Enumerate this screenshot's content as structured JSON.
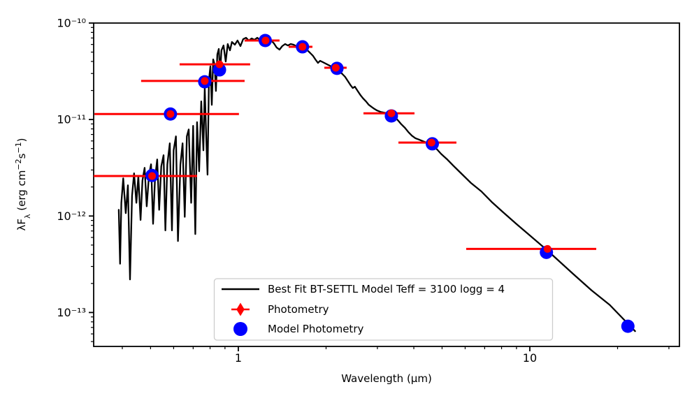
{
  "figure": {
    "background": "#ffffff"
  },
  "colors": {
    "spectrum": "#000000",
    "photometry": "#ff0000",
    "model_photometry": "#0000ff",
    "legend_border": "#cccccc"
  },
  "axes": {
    "xlabel": "Wavelength (μm)",
    "ylabel_plain": "λFλ (erg cm−2s−1)",
    "ylabel_parts": [
      {
        "text": "λF",
        "style": "normal"
      },
      {
        "text": "λ",
        "style": "sub"
      },
      {
        "text": " (erg cm",
        "style": "normal"
      },
      {
        "text": "−2",
        "style": "sup"
      },
      {
        "text": "s",
        "style": "normal"
      },
      {
        "text": "−1",
        "style": "sup"
      },
      {
        "text": ")",
        "style": "normal"
      }
    ],
    "x_ticks": [
      {
        "value": 1,
        "label": "1"
      },
      {
        "value": 10,
        "label": "10"
      }
    ],
    "y_ticks": [
      {
        "value": 1e-10,
        "label": "10⁻¹⁰"
      },
      {
        "value": 1e-11,
        "label": "10⁻¹¹"
      },
      {
        "value": 1e-12,
        "label": "10⁻¹²"
      },
      {
        "value": 1e-13,
        "label": "10⁻¹³"
      }
    ]
  },
  "legend": {
    "items": [
      {
        "label": "Best Fit BT-SETTL Model Teff = 3100 logg = 4",
        "marker": "line",
        "color": "#000000"
      },
      {
        "label": "Photometry",
        "marker": "diamond",
        "color": "#ff0000"
      },
      {
        "label": "Model Photometry",
        "marker": "circle",
        "color": "#0000ff"
      }
    ]
  },
  "chart_data": {
    "type": "line",
    "title": "",
    "xlabel": "Wavelength (μm)",
    "ylabel": "λFλ (erg cm−2s−1)",
    "x_scale": "log",
    "y_scale": "log",
    "xlim": [
      0.319,
      32.6
    ],
    "ylim": [
      4.45e-14,
      1e-10
    ],
    "grid": false,
    "legend_position": "lower center",
    "series": [
      {
        "name": "Best Fit BT-SETTL Model Teff = 3100 logg = 4",
        "type": "line",
        "color": "#000000",
        "points": [
          [
            0.389,
            1.16e-12
          ],
          [
            0.393,
            3.2e-13
          ],
          [
            0.397,
            1.37e-12
          ],
          [
            0.403,
            2.46e-12
          ],
          [
            0.411,
            1.07e-12
          ],
          [
            0.418,
            2.08e-12
          ],
          [
            0.425,
            2.2e-13
          ],
          [
            0.432,
            1.62e-12
          ],
          [
            0.439,
            2.77e-12
          ],
          [
            0.447,
            1.37e-12
          ],
          [
            0.454,
            2.59e-12
          ],
          [
            0.462,
            9.1e-13
          ],
          [
            0.469,
            2.34e-12
          ],
          [
            0.477,
            3.16e-12
          ],
          [
            0.485,
            1.26e-12
          ],
          [
            0.494,
            2.68e-12
          ],
          [
            0.502,
            3.44e-12
          ],
          [
            0.51,
            8.3e-13
          ],
          [
            0.518,
            2.46e-12
          ],
          [
            0.527,
            3.86e-12
          ],
          [
            0.535,
            1.16e-12
          ],
          [
            0.544,
            3.27e-12
          ],
          [
            0.554,
            4.27e-12
          ],
          [
            0.562,
            7.1e-13
          ],
          [
            0.571,
            3.44e-12
          ],
          [
            0.582,
            5.67e-12
          ],
          [
            0.592,
            7.1e-13
          ],
          [
            0.6,
            4.8e-12
          ],
          [
            0.611,
            6.7e-12
          ],
          [
            0.621,
            5.5e-13
          ],
          [
            0.633,
            3.44e-12
          ],
          [
            0.644,
            5.67e-12
          ],
          [
            0.655,
            9.8e-13
          ],
          [
            0.666,
            6.7e-12
          ],
          [
            0.676,
            7.9e-12
          ],
          [
            0.689,
            1.37e-12
          ],
          [
            0.7,
            8.6e-12
          ],
          [
            0.712,
            6.5e-13
          ],
          [
            0.722,
            9.4e-12
          ],
          [
            0.734,
            2.91e-12
          ],
          [
            0.746,
            1.54e-11
          ],
          [
            0.759,
            4.8e-12
          ],
          [
            0.767,
            2.15e-11
          ],
          [
            0.776,
            6.7e-12
          ],
          [
            0.784,
            2.68e-12
          ],
          [
            0.793,
            2.55e-11
          ],
          [
            0.802,
            3.56e-11
          ],
          [
            0.811,
            1.42e-11
          ],
          [
            0.82,
            4.2e-11
          ],
          [
            0.829,
            3.73e-11
          ],
          [
            0.838,
            1.98e-11
          ],
          [
            0.847,
            4.72e-11
          ],
          [
            0.857,
            5.4e-11
          ],
          [
            0.866,
            3.01e-11
          ],
          [
            0.875,
            5.21e-11
          ],
          [
            0.89,
            5.86e-11
          ],
          [
            0.905,
            3.99e-11
          ],
          [
            0.92,
            6.06e-11
          ],
          [
            0.936,
            5.21e-11
          ],
          [
            0.951,
            6.37e-11
          ],
          [
            0.973,
            5.96e-11
          ],
          [
            0.994,
            6.59e-11
          ],
          [
            1.017,
            5.77e-11
          ],
          [
            1.039,
            6.81e-11
          ],
          [
            1.063,
            7.04e-11
          ],
          [
            1.086,
            6.59e-11
          ],
          [
            1.111,
            6.93e-11
          ],
          [
            1.136,
            6.7e-11
          ],
          [
            1.161,
            7.04e-11
          ],
          [
            1.187,
            6.7e-11
          ],
          [
            1.213,
            6.93e-11
          ],
          [
            1.24,
            6.7e-11
          ],
          [
            1.268,
            6.37e-11
          ],
          [
            1.296,
            6.59e-11
          ],
          [
            1.325,
            6.16e-11
          ],
          [
            1.354,
            5.57e-11
          ],
          [
            1.385,
            5.31e-11
          ],
          [
            1.415,
            5.77e-11
          ],
          [
            1.447,
            6.06e-11
          ],
          [
            1.479,
            5.86e-11
          ],
          [
            1.512,
            6.06e-11
          ],
          [
            1.547,
            5.96e-11
          ],
          [
            1.581,
            5.77e-11
          ],
          [
            1.617,
            5.77e-11
          ],
          [
            1.653,
            5.57e-11
          ],
          [
            1.69,
            5.4e-11
          ],
          [
            1.727,
            5.21e-11
          ],
          [
            1.766,
            4.88e-11
          ],
          [
            1.805,
            4.56e-11
          ],
          [
            1.845,
            4.13e-11
          ],
          [
            1.876,
            3.86e-11
          ],
          [
            1.907,
            4.06e-11
          ],
          [
            1.95,
            3.93e-11
          ],
          [
            1.993,
            3.8e-11
          ],
          [
            2.038,
            3.67e-11
          ],
          [
            2.083,
            3.56e-11
          ],
          [
            2.129,
            3.44e-11
          ],
          [
            2.177,
            3.33e-11
          ],
          [
            2.225,
            3.16e-11
          ],
          [
            2.275,
            2.96e-11
          ],
          [
            2.325,
            2.77e-11
          ],
          [
            2.377,
            2.5e-11
          ],
          [
            2.43,
            2.26e-11
          ],
          [
            2.47,
            2.12e-11
          ],
          [
            2.511,
            2.19e-11
          ],
          [
            2.567,
            1.98e-11
          ],
          [
            2.624,
            1.79e-11
          ],
          [
            2.682,
            1.65e-11
          ],
          [
            2.742,
            1.54e-11
          ],
          [
            2.803,
            1.42e-11
          ],
          [
            2.865,
            1.35e-11
          ],
          [
            2.929,
            1.29e-11
          ],
          [
            2.994,
            1.24e-11
          ],
          [
            3.077,
            1.2e-11
          ],
          [
            3.163,
            1.18e-11
          ],
          [
            3.251,
            1.16e-11
          ],
          [
            3.341,
            1.14e-11
          ],
          [
            3.434,
            1.07e-11
          ],
          [
            3.53,
            9.8e-12
          ],
          [
            3.628,
            8.9e-12
          ],
          [
            3.729,
            8.2e-12
          ],
          [
            3.833,
            7.4e-12
          ],
          [
            3.94,
            6.8e-12
          ],
          [
            4.05,
            6.4e-12
          ],
          [
            4.163,
            6.2e-12
          ],
          [
            4.279,
            6e-12
          ],
          [
            4.398,
            5.8e-12
          ],
          [
            4.521,
            5.7e-12
          ],
          [
            4.647,
            5.4e-12
          ],
          [
            4.803,
            4.9e-12
          ],
          [
            4.964,
            4.4e-12
          ],
          [
            5.187,
            3.9e-12
          ],
          [
            5.48,
            3.3e-12
          ],
          [
            5.79,
            2.8e-12
          ],
          [
            6.283,
            2.2e-12
          ],
          [
            6.818,
            1.8e-12
          ],
          [
            7.399,
            1.4e-12
          ],
          [
            8.029,
            1.12e-12
          ],
          [
            8.986,
            8.3e-13
          ],
          [
            10.06,
            6.2e-13
          ],
          [
            11.48,
            4.4e-13
          ],
          [
            12.61,
            3.4e-13
          ],
          [
            14.11,
            2.5e-13
          ],
          [
            16.28,
            1.7e-13
          ],
          [
            18.79,
            1.2e-13
          ],
          [
            21.85,
            7.5e-14
          ],
          [
            22.97,
            6.4e-14
          ]
        ]
      },
      {
        "name": "Photometry",
        "type": "scatter-xerrorbar",
        "color": "#ff0000",
        "point_format": [
          "wavelength_um",
          "flux",
          "wavelength_lo",
          "wavelength_hi"
        ],
        "points": [
          [
            0.506,
            2.6e-12,
            0.319,
            0.722
          ],
          [
            0.585,
            1.14e-11,
            0.321,
            1.005
          ],
          [
            0.767,
            2.51e-11,
            0.464,
            1.051
          ],
          [
            0.862,
            3.73e-11,
            0.629,
            1.098
          ],
          [
            1.24,
            6.59e-11,
            1.051,
            1.385
          ],
          [
            1.66,
            5.67e-11,
            1.488,
            1.796
          ],
          [
            2.16,
            3.44e-11,
            1.973,
            2.353
          ],
          [
            3.35,
            1.16e-11,
            2.687,
            4.021
          ],
          [
            4.6,
            5.77e-12,
            3.542,
            5.6
          ],
          [
            11.5,
            4.56e-13,
            6.05,
            16.9
          ]
        ]
      },
      {
        "name": "Model Photometry",
        "type": "scatter",
        "color": "#0000ff",
        "point_format": [
          "wavelength_um",
          "flux"
        ],
        "points": [
          [
            0.506,
            2.63e-12
          ],
          [
            0.585,
            1.14e-11
          ],
          [
            0.767,
            2.46e-11
          ],
          [
            0.862,
            3.27e-11
          ],
          [
            1.237,
            6.59e-11
          ],
          [
            1.66,
            5.67e-11
          ],
          [
            2.18,
            3.39e-11
          ],
          [
            3.35,
            1.09e-11
          ],
          [
            4.63,
            5.6e-12
          ],
          [
            11.4,
            4.2e-13
          ],
          [
            21.7,
            7.2e-14
          ]
        ]
      }
    ]
  }
}
